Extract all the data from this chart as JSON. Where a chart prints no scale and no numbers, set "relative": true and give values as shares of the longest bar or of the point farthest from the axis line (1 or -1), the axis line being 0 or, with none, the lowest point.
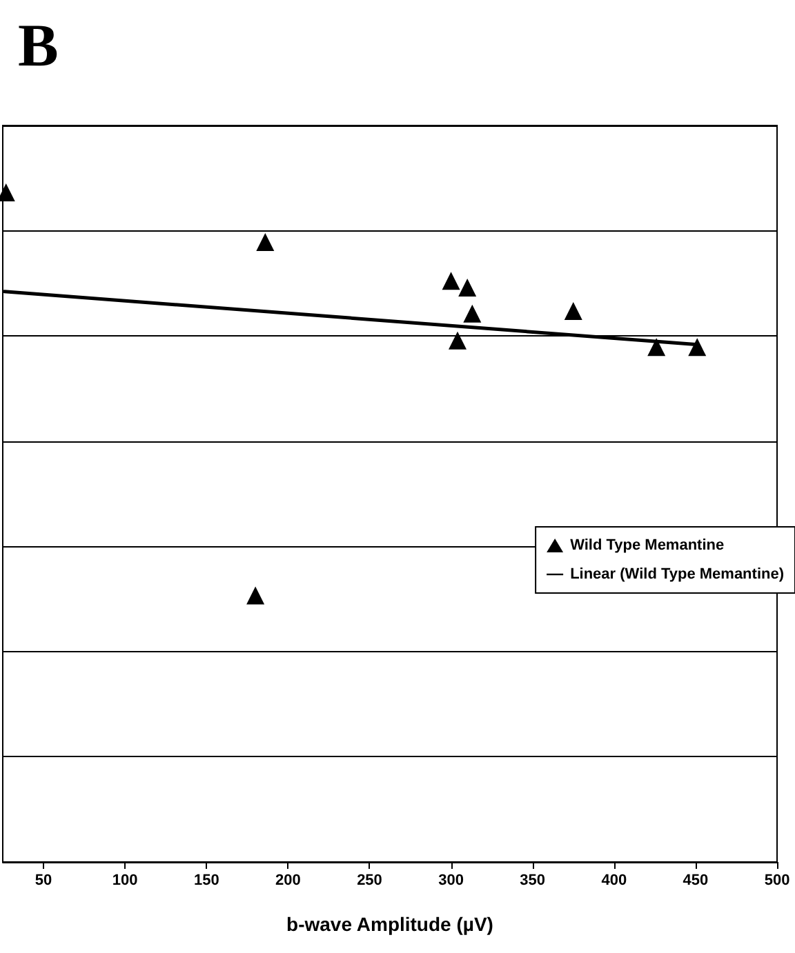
{
  "chart_data": {
    "type": "scatter",
    "title": "B",
    "xlabel": "b-wave Amplitude (µV)",
    "relative": true,
    "xlim": [
      25,
      500
    ],
    "xticks": [
      50,
      100,
      150,
      200,
      250,
      300,
      350,
      400,
      450,
      500
    ],
    "grid": "y",
    "legend": "right",
    "marker": "triangle",
    "series": [
      {
        "name": "Wild Type Memantine",
        "color": "#000000",
        "x": [
          27,
          186,
          300,
          310,
          313,
          304,
          375,
          426,
          451,
          180
        ],
        "values": [
          1.0,
          0.926,
          0.868,
          0.858,
          0.819,
          0.779,
          0.823,
          0.769,
          0.769,
          0.398
        ]
      },
      {
        "name": "Linear (Wild Type Memantine)",
        "type": "line",
        "color": "#000000",
        "marker": "none",
        "line_style": "solid",
        "x": [
          26,
          450
        ],
        "values": [
          0.852,
          0.773
        ]
      }
    ]
  }
}
